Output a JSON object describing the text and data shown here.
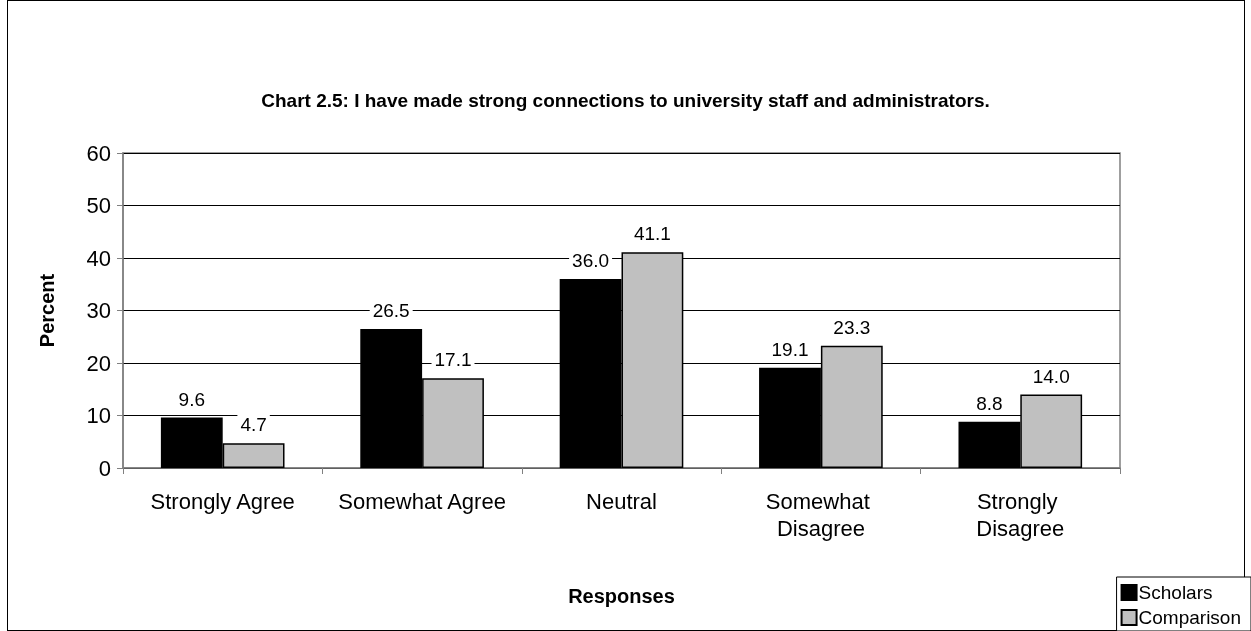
{
  "chart_data": {
    "type": "bar",
    "title": "Chart 2.5: I have made strong connections to university staff and administrators.",
    "xlabel": "Responses",
    "ylabel": "Percent",
    "categories": [
      "Strongly Agree",
      "Somewhat Agree",
      "Neutral",
      "Somewhat Disagree",
      "Strongly Disagree"
    ],
    "series": [
      {
        "name": "Scholars",
        "color": "#000000",
        "values": [
          9.6,
          26.5,
          36.0,
          19.1,
          8.8
        ],
        "value_labels": [
          "9.6",
          "26.5",
          "36.0",
          "19.1",
          "8.8"
        ]
      },
      {
        "name": "Comparison",
        "color": "#c0c0c0",
        "values": [
          4.7,
          17.1,
          41.1,
          23.3,
          14.0
        ],
        "value_labels": [
          "4.7",
          "17.1",
          "41.1",
          "23.3",
          "14.0"
        ]
      }
    ],
    "ylim": [
      0,
      60
    ],
    "yticks": [
      0,
      10,
      20,
      30,
      40,
      50,
      60
    ],
    "grid": "y",
    "legend": "bottom right"
  }
}
